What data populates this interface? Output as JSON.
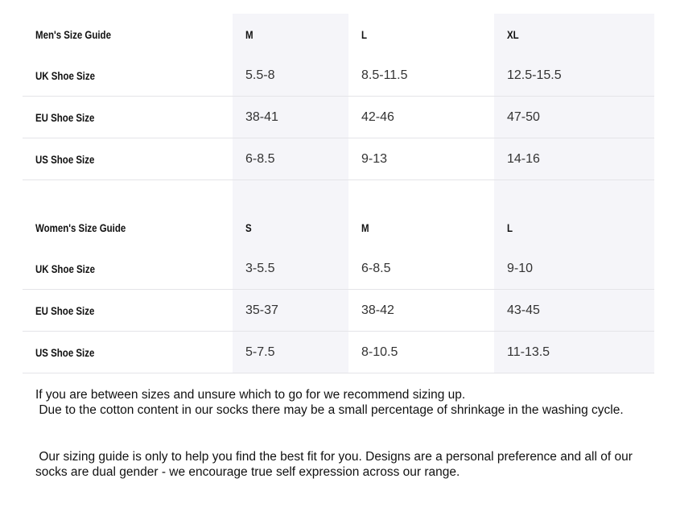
{
  "mens": {
    "title": "Men's Size Guide",
    "sizes": [
      "M",
      "L",
      "XL"
    ],
    "rows": [
      {
        "label": "UK Shoe Size",
        "values": [
          "5.5-8",
          "8.5-11.5",
          "12.5-15.5"
        ]
      },
      {
        "label": "EU Shoe Size",
        "values": [
          "38-41",
          "42-46",
          "47-50"
        ]
      },
      {
        "label": "US Shoe Size",
        "values": [
          "6-8.5",
          "9-13",
          "14-16"
        ]
      }
    ]
  },
  "womens": {
    "title": "Women's Size Guide",
    "sizes": [
      "S",
      "M",
      "L"
    ],
    "rows": [
      {
        "label": "UK Shoe Size",
        "values": [
          "3-5.5",
          "6-8.5",
          "9-10"
        ]
      },
      {
        "label": "EU Shoe Size",
        "values": [
          "35-37",
          "38-42",
          "43-45"
        ]
      },
      {
        "label": "US Shoe Size",
        "values": [
          "5-7.5",
          "8-10.5",
          "11-13.5"
        ]
      }
    ]
  },
  "notes": {
    "line1": "If you are between sizes and unsure which to go for we recommend sizing up.",
    "line2": " Due to the cotton content in our socks there may be a small percentage of shrinkage in the washing cycle.",
    "para2": " Our sizing guide is only to help you find the best fit for you. Designs are a personal preference and all of our socks are dual gender - we encourage true self expression across our range."
  }
}
